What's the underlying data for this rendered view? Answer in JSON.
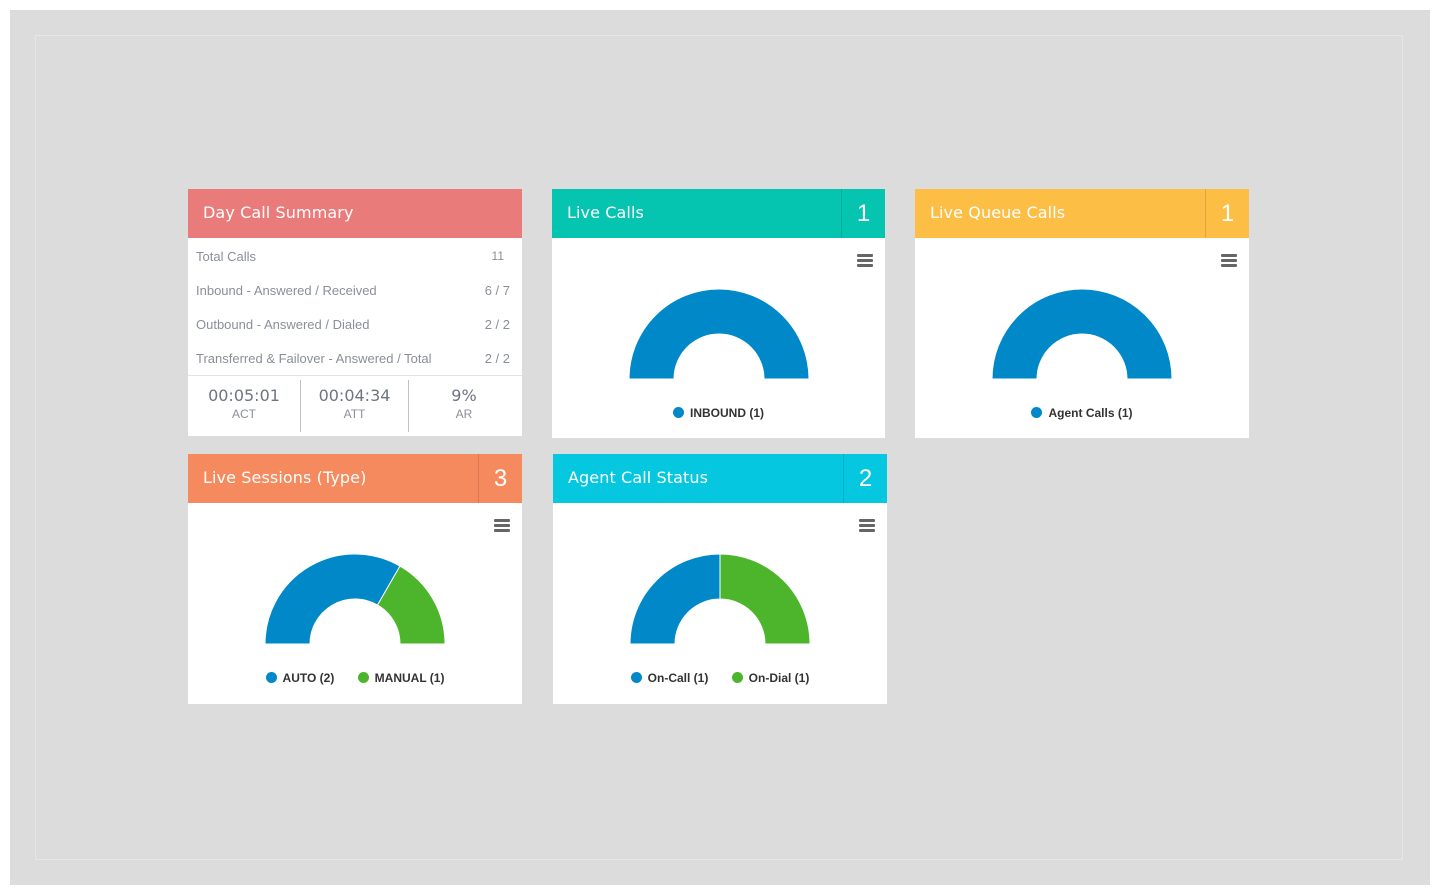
{
  "colors": {
    "blue": "#0088c9",
    "green": "#4db52b",
    "red_header": "#ea7b7b",
    "teal_header": "#05c4b0",
    "amber_header": "#fdbe46",
    "orange_header": "#f58a5e",
    "cyan_header": "#05c7df"
  },
  "day_summary": {
    "title": "Day Call Summary",
    "rows": [
      {
        "label": "Total Calls",
        "value": "11"
      },
      {
        "label": "Inbound - Answered / Received",
        "value": "6 / 7"
      },
      {
        "label": "Outbound - Answered / Dialed",
        "value": "2 / 2"
      },
      {
        "label": "Transferred & Failover - Answered / Total",
        "value": "2 / 2"
      }
    ],
    "stats": [
      {
        "value": "00:05:01",
        "label": "ACT"
      },
      {
        "value": "00:04:34",
        "label": "ATT"
      },
      {
        "value": "9%",
        "label": "AR"
      }
    ]
  },
  "live_calls": {
    "title": "Live Calls",
    "count": "1",
    "menu_icon": "hamburger-menu-icon",
    "legend": [
      {
        "label": "INBOUND (1)",
        "color": "#0088c9"
      }
    ]
  },
  "live_queue": {
    "title": "Live Queue Calls",
    "count": "1",
    "menu_icon": "hamburger-menu-icon",
    "legend": [
      {
        "label": "Agent Calls (1)",
        "color": "#0088c9"
      }
    ]
  },
  "live_sessions": {
    "title": "Live Sessions (Type)",
    "count": "3",
    "menu_icon": "hamburger-menu-icon",
    "legend": [
      {
        "label": "AUTO (2)",
        "color": "#0088c9"
      },
      {
        "label": "MANUAL (1)",
        "color": "#4db52b"
      }
    ]
  },
  "agent_status": {
    "title": "Agent Call Status",
    "count": "2",
    "menu_icon": "hamburger-menu-icon",
    "legend": [
      {
        "label": "On-Call (1)",
        "color": "#0088c9"
      },
      {
        "label": "On-Dial (1)",
        "color": "#4db52b"
      }
    ]
  },
  "chart_data": [
    {
      "type": "pie",
      "variant": "semi-donut",
      "categories": [
        "INBOUND"
      ],
      "values": [
        1
      ]
    },
    {
      "type": "pie",
      "variant": "semi-donut",
      "categories": [
        "Agent Calls"
      ],
      "values": [
        1
      ]
    },
    {
      "type": "pie",
      "variant": "semi-donut",
      "categories": [
        "AUTO",
        "MANUAL"
      ],
      "values": [
        2,
        1
      ]
    },
    {
      "type": "pie",
      "variant": "semi-donut",
      "categories": [
        "On-Call",
        "On-Dial"
      ],
      "values": [
        1,
        1
      ]
    }
  ]
}
